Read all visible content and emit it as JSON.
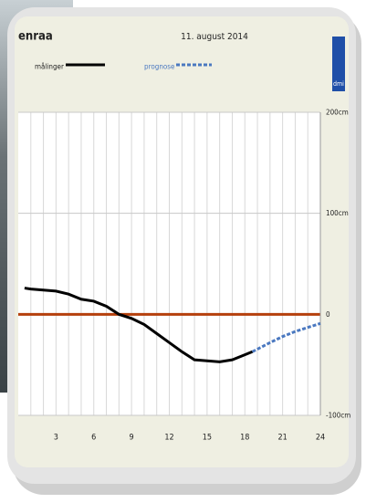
{
  "chart_data": {
    "type": "line",
    "title": "enraa",
    "subtitle": "11. august 2014",
    "logo": "dmi",
    "series": [
      {
        "name": "målinger",
        "color": "#000000",
        "dashed": false,
        "x": [
          0.5,
          1,
          2,
          3,
          4,
          5,
          6,
          7,
          8,
          9,
          10,
          11,
          12,
          13,
          14,
          15,
          16,
          17,
          18,
          18.6
        ],
        "values": [
          26,
          25,
          24,
          23,
          20,
          15,
          13,
          8,
          0,
          -4,
          -10,
          -19,
          -28,
          -37,
          -45,
          -46,
          -47,
          -45,
          -40,
          -37
        ]
      },
      {
        "name": "prognose",
        "color": "#4a78c0",
        "dashed": true,
        "x": [
          18.6,
          20,
          21,
          22,
          23,
          24
        ],
        "values": [
          -37,
          -28,
          -22,
          -17,
          -13,
          -9
        ]
      }
    ],
    "zero_line_color": "#b5400c",
    "xlim": [
      0,
      24
    ],
    "xticks": [
      3,
      6,
      9,
      12,
      15,
      18,
      21,
      24
    ],
    "minor_xticks": [
      1,
      2,
      3,
      4,
      5,
      6,
      7,
      8,
      9,
      10,
      11,
      12,
      13,
      14,
      15,
      16,
      17,
      18,
      19,
      20,
      21,
      22,
      23
    ],
    "ylim": [
      -100,
      200
    ],
    "yticks": [
      {
        "value": -100,
        "label": "-100cm"
      },
      0,
      {
        "value": 100,
        "label": "100cm"
      },
      {
        "value": 200,
        "label": "200cm"
      }
    ],
    "grid": true
  }
}
